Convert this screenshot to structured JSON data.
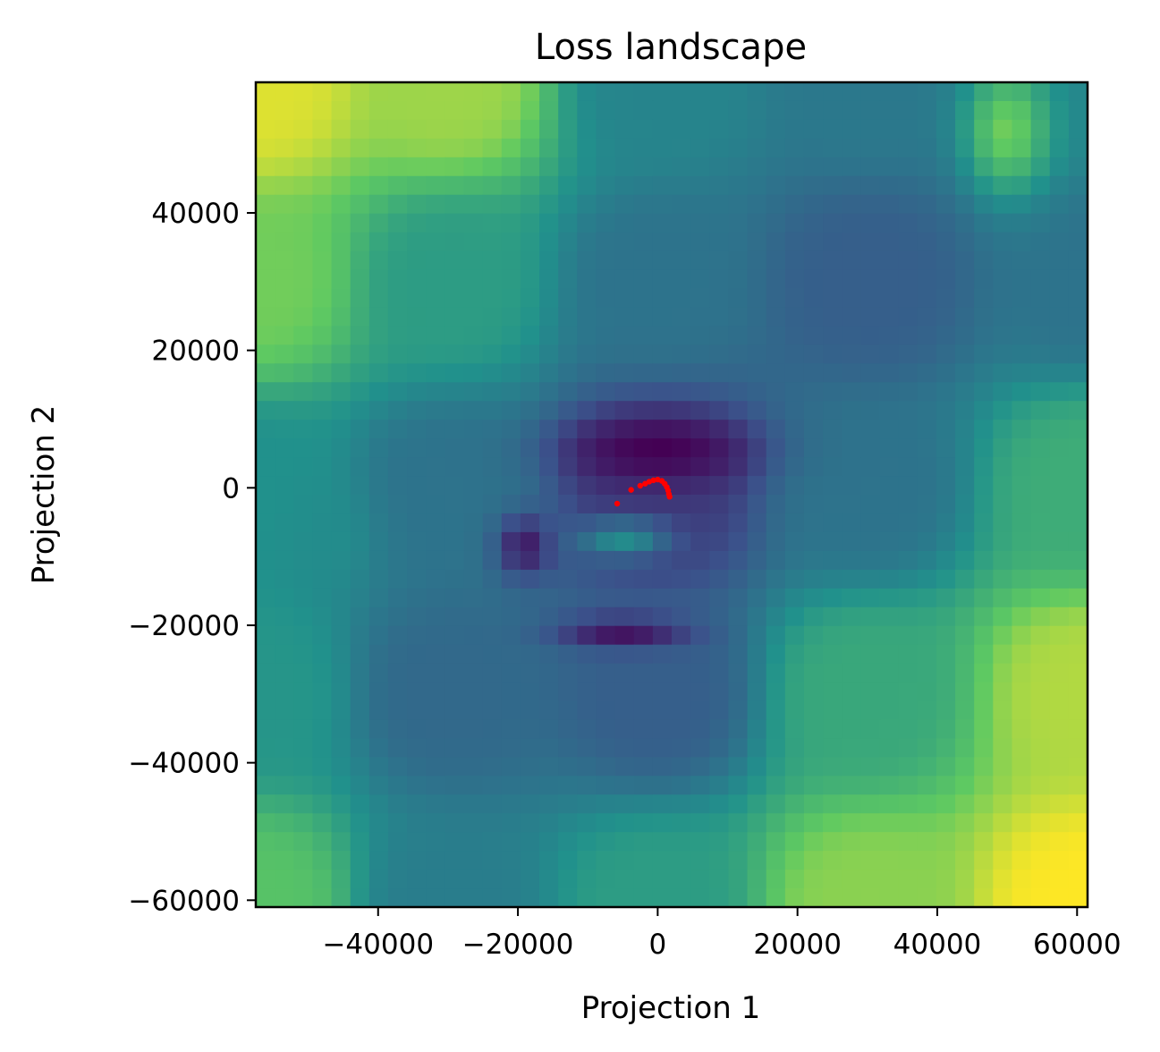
{
  "chart_data": {
    "type": "heatmap",
    "title": "Loss landscape",
    "xlabel": "Projection 1",
    "ylabel": "Projection 2",
    "xlim": [
      -57500,
      61500
    ],
    "ylim": [
      -61000,
      59000
    ],
    "x_ticks": [
      {
        "value": -40000,
        "label": "−40000"
      },
      {
        "value": -20000,
        "label": "−20000"
      },
      {
        "value": 0,
        "label": "0"
      },
      {
        "value": 20000,
        "label": "20000"
      },
      {
        "value": 40000,
        "label": "40000"
      },
      {
        "value": 60000,
        "label": "60000"
      }
    ],
    "y_ticks": [
      {
        "value": 40000,
        "label": "40000"
      },
      {
        "value": 20000,
        "label": "20000"
      },
      {
        "value": 0,
        "label": "0"
      },
      {
        "value": -20000,
        "label": "−20000"
      },
      {
        "value": -40000,
        "label": "−40000"
      },
      {
        "value": -60000,
        "label": "−60000"
      }
    ],
    "colormap": "viridis",
    "colormap_stops": [
      "#440154",
      "#3b528b",
      "#21918c",
      "#5ec962",
      "#fde725"
    ],
    "surface_anchors": [
      {
        "x": -57500,
        "y": 59000,
        "level": 0.95
      },
      {
        "x": -57500,
        "y": 30000,
        "level": 0.78
      },
      {
        "x": -57500,
        "y": 0,
        "level": 0.5
      },
      {
        "x": -57500,
        "y": -30000,
        "level": 0.52
      },
      {
        "x": -57500,
        "y": -61000,
        "level": 0.72
      },
      {
        "x": -30000,
        "y": 59000,
        "level": 0.85
      },
      {
        "x": -30000,
        "y": 30000,
        "level": 0.55
      },
      {
        "x": -30000,
        "y": 0,
        "level": 0.38
      },
      {
        "x": -30000,
        "y": -30000,
        "level": 0.34
      },
      {
        "x": -30000,
        "y": -61000,
        "level": 0.42
      },
      {
        "x": 0,
        "y": 59000,
        "level": 0.45
      },
      {
        "x": 0,
        "y": 30000,
        "level": 0.38
      },
      {
        "x": 0,
        "y": 0,
        "level": 0.18
      },
      {
        "x": 0,
        "y": -30000,
        "level": 0.3
      },
      {
        "x": 0,
        "y": -61000,
        "level": 0.55
      },
      {
        "x": 30000,
        "y": 59000,
        "level": 0.4
      },
      {
        "x": 30000,
        "y": 30000,
        "level": 0.3
      },
      {
        "x": 30000,
        "y": 0,
        "level": 0.38
      },
      {
        "x": 30000,
        "y": -30000,
        "level": 0.6
      },
      {
        "x": 30000,
        "y": -61000,
        "level": 0.82
      },
      {
        "x": 61500,
        "y": 59000,
        "level": 0.45
      },
      {
        "x": 61500,
        "y": 30000,
        "level": 0.38
      },
      {
        "x": 61500,
        "y": 0,
        "level": 0.62
      },
      {
        "x": 61500,
        "y": -30000,
        "level": 0.88
      },
      {
        "x": 61500,
        "y": -61000,
        "level": 1.0
      }
    ],
    "features": [
      {
        "x": 0,
        "y": 5500,
        "rx": 13000,
        "ry": 5000,
        "level": 0.0
      },
      {
        "x": -5000,
        "y": -21000,
        "rx": 9000,
        "ry": 2200,
        "level": 0.05
      },
      {
        "x": -19000,
        "y": -8500,
        "rx": 4000,
        "ry": 4500,
        "level": 0.08
      },
      {
        "x": -5000,
        "y": -7500,
        "rx": 6500,
        "ry": 2800,
        "level": 0.48
      },
      {
        "x": -47000,
        "y": -7000,
        "rx": 6000,
        "ry": 8000,
        "level": 0.48
      },
      {
        "x": 50000,
        "y": 52000,
        "rx": 6000,
        "ry": 9000,
        "level": 0.78
      }
    ],
    "trajectory": {
      "color": "#ff0000",
      "points": [
        {
          "x": -5800,
          "y": -2300
        },
        {
          "x": -3800,
          "y": -300
        },
        {
          "x": -2500,
          "y": 300
        },
        {
          "x": -1800,
          "y": 600
        },
        {
          "x": -1200,
          "y": 900
        },
        {
          "x": -600,
          "y": 1100
        },
        {
          "x": 0,
          "y": 1200
        },
        {
          "x": 600,
          "y": 1000
        },
        {
          "x": 1000,
          "y": 600
        },
        {
          "x": 1300,
          "y": 100
        },
        {
          "x": 1500,
          "y": -400
        },
        {
          "x": 1600,
          "y": -900
        },
        {
          "x": 1700,
          "y": -1300
        }
      ]
    }
  }
}
